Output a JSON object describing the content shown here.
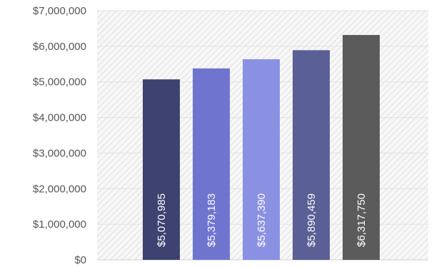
{
  "chart_data": {
    "type": "bar",
    "title": "",
    "xlabel": "",
    "ylabel": "",
    "ylim": [
      0,
      7000000
    ],
    "yticks": [
      0,
      1000000,
      2000000,
      3000000,
      4000000,
      5000000,
      6000000,
      7000000
    ],
    "ytick_labels": [
      "$0",
      "$1,000,000",
      "$2,000,000",
      "$3,000,000",
      "$4,000,000",
      "$5,000,000",
      "$6,000,000",
      "$7,000,000"
    ],
    "grid": true,
    "legend": "none",
    "bars": [
      {
        "value": 5070985,
        "label": "$5,070,985",
        "color": "#3e4270"
      },
      {
        "value": 5379183,
        "label": "$5,379,183",
        "color": "#6f75cf"
      },
      {
        "value": 5637390,
        "label": "$5,637,390",
        "color": "#8b91e2"
      },
      {
        "value": 5890459,
        "label": "$5,890,459",
        "color": "#5a5f95"
      },
      {
        "value": 6317750,
        "label": "$6,317,750",
        "color": "#5b5b5b"
      }
    ]
  }
}
